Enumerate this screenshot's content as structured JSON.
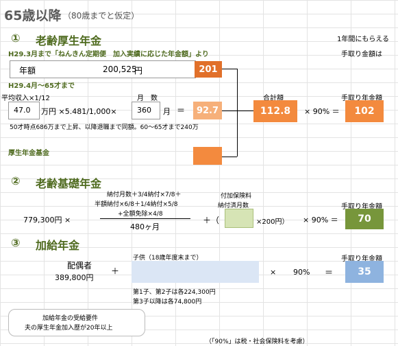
{
  "page": {
    "title": "65歳以降",
    "title_note": "（80歳までと仮定）"
  },
  "sections": {
    "s1": {
      "num": "①",
      "title": "老齢厚生年金",
      "right_header_line1": "1年間にもらえる",
      "right_header_line2": "手取り金額は",
      "note": "H29.3月まで「ねんきん定期便　加入実績に応じた年金額」より",
      "annual_label": "年額",
      "annual_value": "200,525",
      "annual_unit": "円",
      "annual_box": "201",
      "period2_label": "H29.4月～65才まで",
      "avg_income_label": "平均収入×1/12",
      "months_label": "月　数",
      "income_value": "47.0",
      "formula_mid": "万円 ×5.481/1,000×",
      "months_value": "360",
      "months_unit": "月",
      "equals": "＝",
      "result_box": "92.7",
      "total_label": "合計額",
      "total_box": "112.8",
      "times_90": "× 90% ＝",
      "takehome_label": "手取り年金額",
      "takehome_box": "102",
      "footnote": "50才時点686万まで上昇、以降退職まで同額。60～65才まで240万",
      "fund_label": "厚生年金基金"
    },
    "s2": {
      "num": "②",
      "title": "老齢基礎年金",
      "formula_line1": "納付月数＋3/4納付×7/8＋",
      "formula_line2": "半額納付×6/8＋1/4納付×5/8",
      "formula_line3": "+全額免除×4/8",
      "denominator": "480ヶ月",
      "base_amount": "779,300円 ×",
      "plus_paren": "＋（",
      "addl_label1": "付加保険料",
      "addl_label2": "納付済月数",
      "times_200": "×200円）",
      "times_90": "× 90% ＝",
      "takehome_label": "手取り年金額",
      "takehome_box": "70"
    },
    "s3": {
      "num": "③",
      "title": "加給年金",
      "spouse_label": "配偶者",
      "spouse_amount": "389,800円",
      "plus": "＋",
      "child_label": "子供（18歳年度末まで）",
      "times": "×",
      "percent": "90%",
      "equals": "＝",
      "takehome_label": "手取り年金額",
      "takehome_box": "35",
      "child_note1": "第1子、第2子は各224,300円",
      "child_note2": "第3子以降は各74,800円",
      "req_line1": "加給年金の受給要件",
      "req_line2": "夫の厚生年金加入歴が20年以上"
    }
  },
  "footer": {
    "note": "（「90%」は税・社会保険料を考慮）"
  },
  "colors": {
    "dark_orange": "#e1702a",
    "mid_orange": "#f38a3e",
    "light_orange": "#f6b07a",
    "olive": "#77963b",
    "light_green": "#d6e4b5",
    "blue": "#8eb3df",
    "light_blue": "#dbe6f5",
    "heading_green": "#4f6b1f"
  }
}
